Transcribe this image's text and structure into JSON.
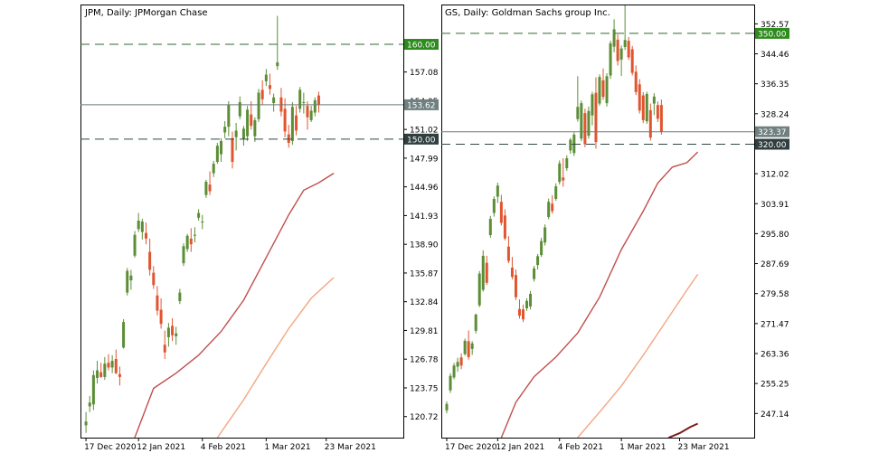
{
  "chart_data": [
    {
      "type": "candlestick",
      "title": "JPM, Daily:  JPMorgan Chase",
      "ylim": [
        118.5,
        164.2
      ],
      "y_ticks": [
        "160.00",
        "157.08",
        "154.05",
        "151.02",
        "147.99",
        "144.96",
        "141.93",
        "138.90",
        "135.87",
        "132.84",
        "129.81",
        "126.78",
        "123.75",
        "120.72"
      ],
      "x_ticks": [
        {
          "label": "17 Dec 2020",
          "index": 0
        },
        {
          "label": "12 Jan 2021",
          "index": 14
        },
        {
          "label": "4 Feb 2021",
          "index": 31
        },
        {
          "label": "1 Mar 2021",
          "index": 48
        },
        {
          "label": "23 Mar 2021",
          "index": 64
        }
      ],
      "n_slots": 86,
      "hlines": [
        {
          "value": 160.0,
          "label": "160.00",
          "style": "dashed",
          "color": "#2e6b2e"
        },
        {
          "value": 150.0,
          "label": "150.00",
          "style": "dashed",
          "color": "#2e4a44"
        }
      ],
      "last_price": {
        "value": 153.62,
        "label": "153.62"
      },
      "ma_series": [
        {
          "color": "#c0504d",
          "points": [
            [
              13,
              118.5
            ],
            [
              18,
              123.7
            ],
            [
              24,
              125.3
            ],
            [
              30,
              127.2
            ],
            [
              36,
              129.7
            ],
            [
              42,
              133.0
            ],
            [
              48,
              137.5
            ],
            [
              54,
              142.0
            ],
            [
              58,
              144.6
            ],
            [
              62,
              145.4
            ],
            [
              66,
              146.4
            ]
          ]
        },
        {
          "color": "#f4a582",
          "points": [
            [
              35,
              118.5
            ],
            [
              42,
              122.5
            ],
            [
              48,
              126.3
            ],
            [
              54,
              130.0
            ],
            [
              60,
              133.2
            ],
            [
              66,
              135.4
            ]
          ]
        }
      ],
      "candles": [
        {
          "o": 119.8,
          "h": 121.2,
          "l": 119.0,
          "c": 120.2
        },
        {
          "o": 121.8,
          "h": 122.9,
          "l": 121.2,
          "c": 122.2
        },
        {
          "o": 122.0,
          "h": 125.6,
          "l": 121.4,
          "c": 125.1
        },
        {
          "o": 124.8,
          "h": 126.6,
          "l": 124.2,
          "c": 125.6
        },
        {
          "o": 125.4,
          "h": 126.4,
          "l": 124.8,
          "c": 124.9
        },
        {
          "o": 124.9,
          "h": 127.0,
          "l": 124.6,
          "c": 126.3
        },
        {
          "o": 126.4,
          "h": 127.3,
          "l": 125.6,
          "c": 125.9
        },
        {
          "o": 125.9,
          "h": 127.2,
          "l": 125.3,
          "c": 126.6
        },
        {
          "o": 126.8,
          "h": 127.8,
          "l": 125.2,
          "c": 125.3
        },
        {
          "o": 125.2,
          "h": 126.0,
          "l": 124.0,
          "c": 124.9
        },
        {
          "o": 128.0,
          "h": 131.0,
          "l": 127.9,
          "c": 130.7
        },
        {
          "o": 133.8,
          "h": 136.4,
          "l": 133.5,
          "c": 136.1
        },
        {
          "o": 135.1,
          "h": 136.2,
          "l": 134.1,
          "c": 135.6
        },
        {
          "o": 137.7,
          "h": 140.3,
          "l": 137.5,
          "c": 139.9
        },
        {
          "o": 140.5,
          "h": 142.2,
          "l": 140.2,
          "c": 141.4
        },
        {
          "o": 140.2,
          "h": 141.6,
          "l": 139.4,
          "c": 141.3
        },
        {
          "o": 140.1,
          "h": 141.2,
          "l": 138.9,
          "c": 139.5
        },
        {
          "o": 138.1,
          "h": 139.5,
          "l": 135.6,
          "c": 136.2
        },
        {
          "o": 135.9,
          "h": 136.6,
          "l": 134.2,
          "c": 134.6
        },
        {
          "o": 133.5,
          "h": 134.5,
          "l": 131.4,
          "c": 131.9
        },
        {
          "o": 132.0,
          "h": 133.2,
          "l": 130.0,
          "c": 130.5
        },
        {
          "o": 128.3,
          "h": 129.8,
          "l": 126.8,
          "c": 127.5
        },
        {
          "o": 129.1,
          "h": 130.6,
          "l": 128.1,
          "c": 130.1
        },
        {
          "o": 130.3,
          "h": 131.1,
          "l": 128.7,
          "c": 129.3
        },
        {
          "o": 129.2,
          "h": 130.2,
          "l": 128.3,
          "c": 129.5
        },
        {
          "o": 132.9,
          "h": 134.2,
          "l": 132.6,
          "c": 133.8
        },
        {
          "o": 136.9,
          "h": 139.0,
          "l": 136.6,
          "c": 138.7
        },
        {
          "o": 138.4,
          "h": 140.0,
          "l": 138.1,
          "c": 139.8
        },
        {
          "o": 139.5,
          "h": 140.6,
          "l": 138.1,
          "c": 138.9
        },
        {
          "o": 139.8,
          "h": 140.7,
          "l": 139.1,
          "c": 139.9
        },
        {
          "o": 141.7,
          "h": 142.6,
          "l": 141.4,
          "c": 142.2
        },
        {
          "o": 141.2,
          "h": 142.0,
          "l": 140.5,
          "c": 141.3
        },
        {
          "o": 144.1,
          "h": 145.7,
          "l": 143.8,
          "c": 145.5
        },
        {
          "o": 145.2,
          "h": 146.6,
          "l": 144.1,
          "c": 144.5
        },
        {
          "o": 146.4,
          "h": 147.7,
          "l": 146.0,
          "c": 147.4
        },
        {
          "o": 147.6,
          "h": 149.6,
          "l": 147.4,
          "c": 149.3
        },
        {
          "o": 148.4,
          "h": 150.1,
          "l": 147.6,
          "c": 149.8
        },
        {
          "o": 150.7,
          "h": 151.9,
          "l": 150.1,
          "c": 151.3
        },
        {
          "o": 151.3,
          "h": 154.0,
          "l": 150.3,
          "c": 153.6
        },
        {
          "o": 150.1,
          "h": 150.8,
          "l": 146.9,
          "c": 147.6
        },
        {
          "o": 150.2,
          "h": 151.7,
          "l": 148.8,
          "c": 150.9
        },
        {
          "o": 152.4,
          "h": 154.5,
          "l": 152.1,
          "c": 153.9
        },
        {
          "o": 150.0,
          "h": 151.4,
          "l": 149.3,
          "c": 151.1
        },
        {
          "o": 150.3,
          "h": 153.5,
          "l": 149.8,
          "c": 153.1
        },
        {
          "o": 152.6,
          "h": 154.0,
          "l": 151.0,
          "c": 151.4
        },
        {
          "o": 150.3,
          "h": 152.3,
          "l": 149.7,
          "c": 152.0
        },
        {
          "o": 152.1,
          "h": 155.3,
          "l": 151.8,
          "c": 154.9
        },
        {
          "o": 155.2,
          "h": 156.2,
          "l": 153.6,
          "c": 154.2
        },
        {
          "o": 156.1,
          "h": 157.4,
          "l": 155.6,
          "c": 156.8
        },
        {
          "o": 155.7,
          "h": 156.9,
          "l": 154.7,
          "c": 155.3
        },
        {
          "o": 153.8,
          "h": 154.8,
          "l": 152.9,
          "c": 154.4
        },
        {
          "o": 157.7,
          "h": 163.0,
          "l": 157.3,
          "c": 158.1
        },
        {
          "o": 154.4,
          "h": 155.4,
          "l": 152.4,
          "c": 152.9
        },
        {
          "o": 153.2,
          "h": 154.3,
          "l": 150.2,
          "c": 150.8
        },
        {
          "o": 150.5,
          "h": 151.5,
          "l": 149.1,
          "c": 149.6
        },
        {
          "o": 149.8,
          "h": 153.9,
          "l": 149.4,
          "c": 153.4
        },
        {
          "o": 152.5,
          "h": 153.5,
          "l": 150.4,
          "c": 150.9
        },
        {
          "o": 153.2,
          "h": 155.5,
          "l": 152.8,
          "c": 155.2
        },
        {
          "o": 153.8,
          "h": 154.9,
          "l": 152.7,
          "c": 153.9
        },
        {
          "o": 153.5,
          "h": 154.0,
          "l": 151.0,
          "c": 152.3
        },
        {
          "o": 152.0,
          "h": 153.5,
          "l": 151.8,
          "c": 153.0
        },
        {
          "o": 152.8,
          "h": 154.4,
          "l": 152.4,
          "c": 154.1
        },
        {
          "o": 154.6,
          "h": 155.0,
          "l": 152.8,
          "c": 153.6
        }
      ]
    },
    {
      "type": "candlestick",
      "title": "GS, Daily:  Goldman Sachs group Inc.",
      "ylim": [
        240.6,
        357.8
      ],
      "y_ticks": [
        "352.57",
        "350.00",
        "344.46",
        "336.35",
        "328.24",
        "323.37",
        "320.00",
        "312.02",
        "303.91",
        "295.80",
        "287.69",
        "279.58",
        "271.47",
        "263.36",
        "255.25",
        "247.14"
      ],
      "x_ticks": [
        {
          "label": "17 Dec 2020",
          "index": 0
        },
        {
          "label": "12 Jan 2021",
          "index": 14
        },
        {
          "label": "4 Feb 2021",
          "index": 31
        },
        {
          "label": "1 Mar 2021",
          "index": 48
        },
        {
          "label": "23 Mar 2021",
          "index": 64
        }
      ],
      "n_slots": 86,
      "hlines": [
        {
          "value": 350.0,
          "label": "350.00",
          "style": "dashed",
          "color": "#2e6b2e"
        },
        {
          "value": 320.0,
          "label": "320.00",
          "style": "dashed",
          "color": "#2e4a44"
        }
      ],
      "last_price": {
        "value": 323.37,
        "label": "323.37"
      },
      "ma_series": [
        {
          "color": "#c0504d",
          "points": [
            [
              15,
              240.6
            ],
            [
              19,
              250.2
            ],
            [
              24,
              257.1
            ],
            [
              30,
              262.4
            ],
            [
              36,
              268.9
            ],
            [
              42,
              278.6
            ],
            [
              48,
              291.5
            ],
            [
              54,
              301.9
            ],
            [
              58,
              309.5
            ],
            [
              62,
              313.8
            ],
            [
              66,
              315.0
            ],
            [
              69,
              317.9
            ]
          ]
        },
        {
          "color": "#f4a582",
          "points": [
            [
              36,
              240.6
            ],
            [
              42,
              247.5
            ],
            [
              48,
              254.6
            ],
            [
              54,
              262.9
            ],
            [
              60,
              271.7
            ],
            [
              66,
              280.5
            ],
            [
              69,
              284.8
            ]
          ]
        },
        {
          "color": "#7b1e1e",
          "points": [
            [
              61,
              240.6
            ],
            [
              64,
              241.8
            ],
            [
              67,
              243.5
            ],
            [
              69,
              244.4
            ]
          ]
        }
      ],
      "candles": [
        {
          "o": 248.0,
          "h": 250.4,
          "l": 247.2,
          "c": 249.7
        },
        {
          "o": 253.4,
          "h": 258.0,
          "l": 252.7,
          "c": 257.3
        },
        {
          "o": 256.9,
          "h": 260.8,
          "l": 256.4,
          "c": 260.1
        },
        {
          "o": 259.8,
          "h": 262.2,
          "l": 258.4,
          "c": 261.1
        },
        {
          "o": 262.3,
          "h": 263.4,
          "l": 259.1,
          "c": 260.1
        },
        {
          "o": 263.2,
          "h": 267.4,
          "l": 262.8,
          "c": 266.8
        },
        {
          "o": 266.7,
          "h": 269.6,
          "l": 261.7,
          "c": 262.4
        },
        {
          "o": 264.6,
          "h": 266.7,
          "l": 263.0,
          "c": 266.1
        },
        {
          "o": 269.5,
          "h": 274.2,
          "l": 268.8,
          "c": 273.9
        },
        {
          "o": 276.4,
          "h": 285.7,
          "l": 275.9,
          "c": 285.0
        },
        {
          "o": 280.6,
          "h": 291.3,
          "l": 280.1,
          "c": 289.8
        },
        {
          "o": 287.9,
          "h": 289.8,
          "l": 281.9,
          "c": 282.5
        },
        {
          "o": 295.4,
          "h": 300.6,
          "l": 294.7,
          "c": 299.8
        },
        {
          "o": 301.4,
          "h": 305.9,
          "l": 300.4,
          "c": 305.2
        },
        {
          "o": 305.8,
          "h": 309.6,
          "l": 304.1,
          "c": 308.8
        },
        {
          "o": 304.4,
          "h": 306.3,
          "l": 298.0,
          "c": 298.7
        },
        {
          "o": 300.7,
          "h": 302.4,
          "l": 294.0,
          "c": 294.5
        },
        {
          "o": 292.3,
          "h": 295.1,
          "l": 287.8,
          "c": 288.4
        },
        {
          "o": 286.6,
          "h": 289.5,
          "l": 283.4,
          "c": 284.1
        },
        {
          "o": 284.6,
          "h": 286.1,
          "l": 277.8,
          "c": 278.6
        },
        {
          "o": 275.4,
          "h": 278.0,
          "l": 272.8,
          "c": 273.6
        },
        {
          "o": 275.3,
          "h": 276.6,
          "l": 271.9,
          "c": 272.6
        },
        {
          "o": 275.6,
          "h": 278.3,
          "l": 274.9,
          "c": 277.6
        },
        {
          "o": 276.1,
          "h": 280.3,
          "l": 275.3,
          "c": 279.5
        },
        {
          "o": 283.5,
          "h": 287.1,
          "l": 282.8,
          "c": 286.4
        },
        {
          "o": 287.3,
          "h": 290.3,
          "l": 286.1,
          "c": 289.7
        },
        {
          "o": 290.0,
          "h": 294.7,
          "l": 289.5,
          "c": 293.8
        },
        {
          "o": 293.4,
          "h": 298.3,
          "l": 292.6,
          "c": 297.5
        },
        {
          "o": 300.3,
          "h": 305.3,
          "l": 299.7,
          "c": 304.4
        },
        {
          "o": 303.9,
          "h": 306.2,
          "l": 301.2,
          "c": 301.9
        },
        {
          "o": 305.2,
          "h": 309.4,
          "l": 304.7,
          "c": 308.6
        },
        {
          "o": 309.8,
          "h": 315.6,
          "l": 309.1,
          "c": 314.8
        },
        {
          "o": 311.0,
          "h": 316.2,
          "l": 308.5,
          "c": 310.2
        },
        {
          "o": 313.5,
          "h": 317.0,
          "l": 312.8,
          "c": 316.2
        },
        {
          "o": 318.3,
          "h": 321.7,
          "l": 317.4,
          "c": 321.2
        },
        {
          "o": 317.6,
          "h": 323.2,
          "l": 316.8,
          "c": 322.6
        },
        {
          "o": 326.8,
          "h": 338.4,
          "l": 326.1,
          "c": 330.1
        },
        {
          "o": 321.5,
          "h": 331.8,
          "l": 320.8,
          "c": 331.1
        },
        {
          "o": 328.4,
          "h": 329.6,
          "l": 319.2,
          "c": 320.0
        },
        {
          "o": 322.3,
          "h": 330.2,
          "l": 321.5,
          "c": 329.0
        },
        {
          "o": 327.8,
          "h": 334.2,
          "l": 325.1,
          "c": 333.5
        },
        {
          "o": 333.9,
          "h": 338.1,
          "l": 318.8,
          "c": 320.6
        },
        {
          "o": 331.0,
          "h": 338.9,
          "l": 330.4,
          "c": 338.2
        },
        {
          "o": 337.3,
          "h": 340.5,
          "l": 332.0,
          "c": 332.8
        },
        {
          "o": 331.1,
          "h": 339.2,
          "l": 330.2,
          "c": 338.4
        },
        {
          "o": 338.6,
          "h": 348.0,
          "l": 337.7,
          "c": 347.3
        },
        {
          "o": 346.4,
          "h": 353.8,
          "l": 344.9,
          "c": 351.1
        },
        {
          "o": 348.3,
          "h": 349.7,
          "l": 341.3,
          "c": 342.5
        },
        {
          "o": 342.9,
          "h": 346.7,
          "l": 338.5,
          "c": 345.9
        },
        {
          "o": 346.3,
          "h": 358.9,
          "l": 345.5,
          "c": 348.2
        },
        {
          "o": 348.0,
          "h": 349.0,
          "l": 342.8,
          "c": 343.5
        },
        {
          "o": 345.7,
          "h": 346.6,
          "l": 338.6,
          "c": 339.3
        },
        {
          "o": 339.6,
          "h": 341.3,
          "l": 333.3,
          "c": 334.1
        },
        {
          "o": 336.2,
          "h": 337.6,
          "l": 328.3,
          "c": 329.1
        },
        {
          "o": 333.2,
          "h": 334.1,
          "l": 325.7,
          "c": 326.5
        },
        {
          "o": 326.2,
          "h": 334.2,
          "l": 325.5,
          "c": 333.6
        },
        {
          "o": 329.2,
          "h": 331.0,
          "l": 321.0,
          "c": 321.8
        },
        {
          "o": 331.0,
          "h": 333.8,
          "l": 327.9,
          "c": 332.9
        },
        {
          "o": 330.6,
          "h": 331.6,
          "l": 326.0,
          "c": 326.9
        },
        {
          "o": 330.6,
          "h": 332.1,
          "l": 322.6,
          "c": 323.4
        }
      ]
    }
  ]
}
